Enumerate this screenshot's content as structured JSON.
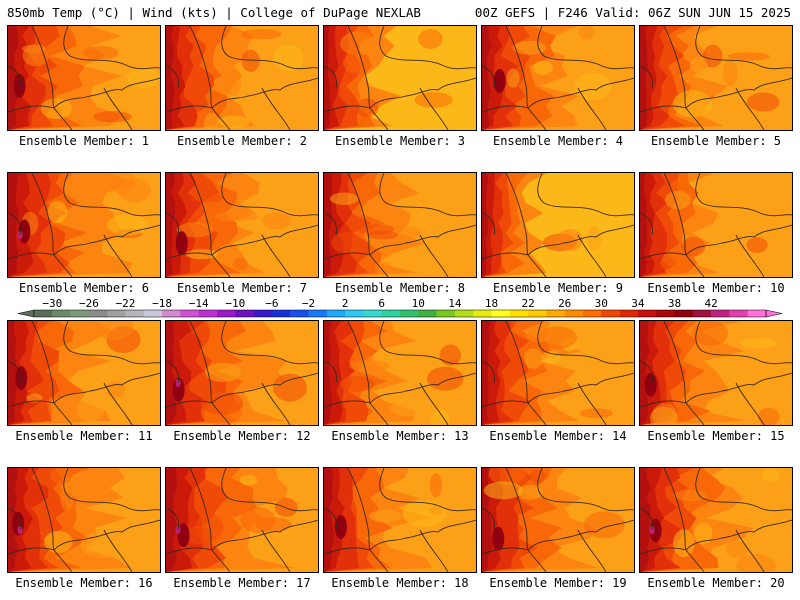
{
  "header": {
    "left": "850mb Temp (°C) | Wind (kts) | College of DuPage NEXLAB",
    "right": "00Z GEFS | F246 Valid: 06Z SUN JUN 15 2025"
  },
  "colorbar": {
    "tick_labels": [
      "−30",
      "−26",
      "−22",
      "−18",
      "−14",
      "−10",
      "−6",
      "−2",
      "2",
      "6",
      "10",
      "14",
      "18",
      "22",
      "26",
      "30",
      "34",
      "38",
      "42"
    ],
    "min": -32,
    "max": 44,
    "step": 2,
    "colors": [
      "#5a6e5a",
      "#6a8a6a",
      "#7e9a7e",
      "#8a8a8a",
      "#a0a0a0",
      "#b4b4bc",
      "#c8c8dc",
      "#d08ad0",
      "#d250d2",
      "#c030d0",
      "#9a18c8",
      "#6e10c0",
      "#3818c8",
      "#1830d8",
      "#1850f0",
      "#1878f8",
      "#20a8f8",
      "#30c8f0",
      "#38d8d0",
      "#30d0a0",
      "#30c070",
      "#40b040",
      "#78c820",
      "#b4dc18",
      "#e6ec10",
      "#ffff20",
      "#ffe000",
      "#ffc800",
      "#ffaa00",
      "#ff8c00",
      "#ff6c00",
      "#f04800",
      "#e02800",
      "#c81010",
      "#a80808",
      "#900010",
      "#a01040",
      "#c02080",
      "#e040b0",
      "#ff70d8"
    ]
  },
  "panels": [
    {
      "label": "Ensemble Member: 1",
      "warmth": 0.7
    },
    {
      "label": "Ensemble Member: 2",
      "warmth": 0.5
    },
    {
      "label": "Ensemble Member: 3",
      "warmth": 0.2
    },
    {
      "label": "Ensemble Member: 4",
      "warmth": 0.6
    },
    {
      "label": "Ensemble Member: 5",
      "warmth": 0.4
    },
    {
      "label": "Ensemble Member: 6",
      "warmth": 0.9
    },
    {
      "label": "Ensemble Member: 7",
      "warmth": 0.6
    },
    {
      "label": "Ensemble Member: 8",
      "warmth": 0.5
    },
    {
      "label": "Ensemble Member: 9",
      "warmth": 0.1
    },
    {
      "label": "Ensemble Member: 10",
      "warmth": 0.3
    },
    {
      "label": "Ensemble Member: 11",
      "warmth": 0.6
    },
    {
      "label": "Ensemble Member: 12",
      "warmth": 0.8
    },
    {
      "label": "Ensemble Member: 13",
      "warmth": 0.4
    },
    {
      "label": "Ensemble Member: 14",
      "warmth": 0.5
    },
    {
      "label": "Ensemble Member: 15",
      "warmth": 0.6
    },
    {
      "label": "Ensemble Member: 16",
      "warmth": 0.8
    },
    {
      "label": "Ensemble Member: 17",
      "warmth": 0.9
    },
    {
      "label": "Ensemble Member: 18",
      "warmth": 0.6
    },
    {
      "label": "Ensemble Member: 19",
      "warmth": 0.7
    },
    {
      "label": "Ensemble Member: 20",
      "warmth": 0.8
    }
  ]
}
